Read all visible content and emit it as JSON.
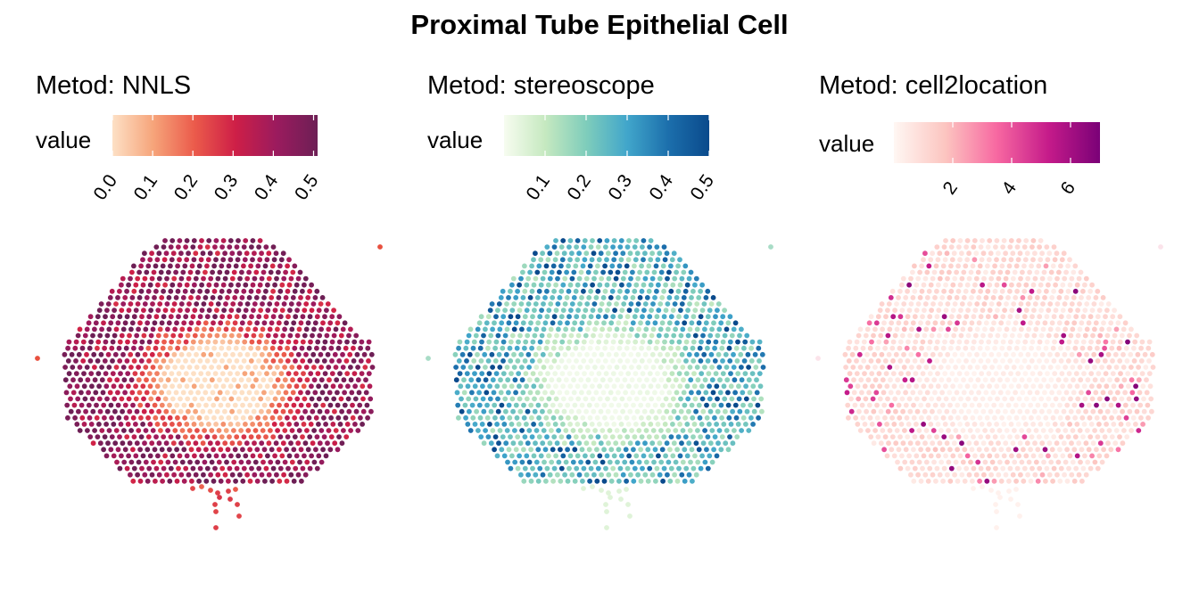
{
  "title": "Proximal Tube Epithelial Cell",
  "chart_data": [
    {
      "type": "scatter",
      "title": "Metod: NNLS",
      "legend": {
        "label": "value",
        "ticks": [
          "0.0",
          "0.1",
          "0.2",
          "0.3",
          "0.4",
          "0.5"
        ],
        "tick_values": [
          0,
          0.1,
          0.2,
          0.3,
          0.4,
          0.5
        ],
        "range": [
          0,
          0.51
        ],
        "colors": [
          "#fde0c5",
          "#f6a47a",
          "#eb5b4b",
          "#ce1f47",
          "#9b1b5e",
          "#6d1f55"
        ]
      },
      "spot_pattern": {
        "outer_band": [
          0.26,
          0.46
        ],
        "center": [
          0.0,
          0.08
        ]
      }
    },
    {
      "type": "scatter",
      "title": "Metod: stereoscope",
      "legend": {
        "label": "value",
        "ticks": [
          "0.1",
          "0.2",
          "0.3",
          "0.4",
          "0.5"
        ],
        "tick_values": [
          0.1,
          0.2,
          0.3,
          0.4,
          0.5
        ],
        "range": [
          0,
          0.5
        ],
        "colors": [
          "#f7fcf0",
          "#c6e9c0",
          "#7fcdbb",
          "#41a6cb",
          "#1c6fac",
          "#0a4a8c"
        ]
      },
      "spot_pattern": {
        "outer_band": [
          0.08,
          0.5
        ],
        "center": [
          0.0,
          0.03
        ]
      }
    },
    {
      "type": "scatter",
      "title": "Metod: cell2location",
      "legend": {
        "label": "value",
        "ticks": [
          "2",
          "4",
          "6"
        ],
        "tick_values": [
          2,
          4,
          6
        ],
        "range": [
          0,
          7
        ],
        "colors": [
          "#fff7f3",
          "#fcc5c0",
          "#f768a1",
          "#c51b8a",
          "#7a0177"
        ]
      },
      "spot_pattern": {
        "outer_band": [
          0.3,
          6.8
        ],
        "center": [
          0.0,
          0.4
        ]
      }
    }
  ]
}
